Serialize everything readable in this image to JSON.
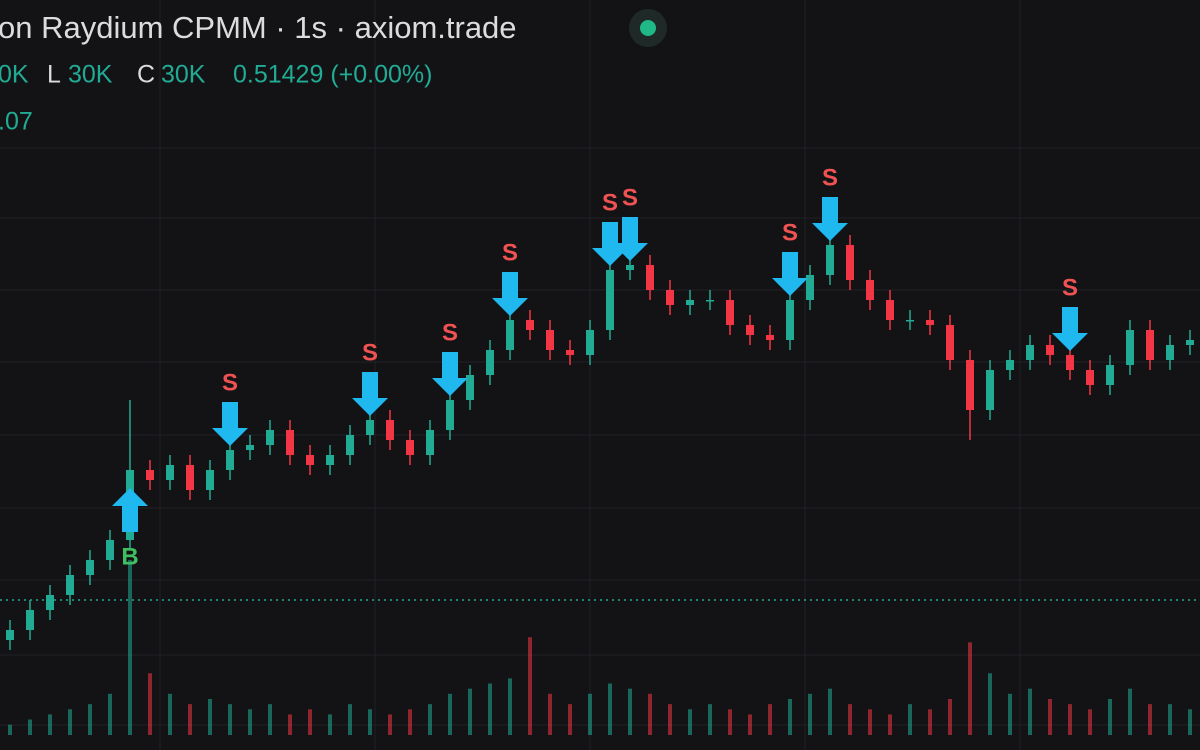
{
  "header": {
    "title": "on Raydium CPMM · 1s · axiom.trade",
    "ohlc": [
      "0K",
      "L",
      "30K",
      "C",
      "30K",
      "0.51429 (+0.00%)"
    ],
    "volume_label": ".07"
  },
  "chart_data": {
    "type": "candlestick",
    "ylim": [
      0,
      150
    ],
    "open": [
      22,
      24,
      28,
      31,
      35,
      38,
      42,
      56,
      54,
      57,
      52,
      56,
      60,
      61,
      64,
      59,
      57,
      59,
      63,
      66,
      62,
      59,
      64,
      70,
      75,
      80,
      86,
      84,
      80,
      79,
      84,
      96,
      97,
      92,
      89,
      90,
      90,
      85,
      83,
      82,
      90,
      95,
      101,
      94,
      90,
      86,
      86,
      85,
      78,
      68,
      76,
      78,
      81,
      79,
      76,
      73,
      77,
      84,
      78,
      81
    ],
    "high": [
      26,
      30,
      33,
      37,
      40,
      44,
      70,
      58,
      59,
      59,
      58,
      62,
      63,
      66,
      66,
      61,
      61,
      65,
      68,
      68,
      64,
      66,
      72,
      77,
      82,
      88,
      88,
      86,
      82,
      86,
      98,
      99,
      99,
      94,
      92,
      92,
      92,
      87,
      85,
      92,
      97,
      103,
      103,
      96,
      92,
      88,
      88,
      87,
      80,
      78,
      80,
      83,
      83,
      81,
      78,
      79,
      86,
      86,
      83,
      84
    ],
    "low": [
      20,
      22,
      26,
      29,
      33,
      36,
      40,
      52,
      52,
      50,
      50,
      54,
      58,
      59,
      57,
      55,
      55,
      57,
      61,
      60,
      57,
      57,
      62,
      68,
      73,
      78,
      82,
      78,
      77,
      77,
      82,
      94,
      90,
      87,
      87,
      88,
      83,
      81,
      80,
      80,
      88,
      93,
      92,
      88,
      84,
      84,
      83,
      76,
      62,
      66,
      74,
      76,
      77,
      74,
      71,
      71,
      75,
      76,
      76,
      79
    ],
    "close": [
      24,
      28,
      31,
      35,
      38,
      42,
      56,
      54,
      57,
      52,
      56,
      60,
      61,
      64,
      59,
      57,
      59,
      63,
      66,
      62,
      59,
      64,
      70,
      75,
      80,
      86,
      84,
      80,
      79,
      84,
      96,
      97,
      92,
      89,
      90,
      90,
      85,
      83,
      82,
      90,
      95,
      101,
      94,
      90,
      86,
      86,
      85,
      78,
      68,
      76,
      78,
      81,
      79,
      76,
      73,
      77,
      84,
      78,
      81,
      82
    ],
    "volume": [
      10,
      15,
      20,
      25,
      30,
      40,
      170,
      60,
      40,
      30,
      35,
      30,
      25,
      30,
      20,
      25,
      20,
      30,
      25,
      20,
      25,
      30,
      40,
      45,
      50,
      55,
      95,
      40,
      30,
      40,
      50,
      45,
      40,
      30,
      25,
      30,
      25,
      20,
      30,
      35,
      40,
      45,
      30,
      25,
      20,
      30,
      25,
      35,
      90,
      60,
      40,
      45,
      35,
      30,
      25,
      35,
      45,
      30,
      30,
      25
    ],
    "up_color": "#22ab94",
    "down_color": "#f23645",
    "grid": true,
    "markers": [
      {
        "candle": 6,
        "label": "B"
      },
      {
        "candle": 11,
        "label": "S"
      },
      {
        "candle": 18,
        "label": "S"
      },
      {
        "candle": 22,
        "label": "S"
      },
      {
        "candle": 25,
        "label": "S"
      },
      {
        "candle": 30,
        "label": "S"
      },
      {
        "candle": 31,
        "label": "S"
      },
      {
        "candle": 39,
        "label": "S"
      },
      {
        "candle": 41,
        "label": "S"
      },
      {
        "candle": 53,
        "label": "S"
      }
    ]
  }
}
